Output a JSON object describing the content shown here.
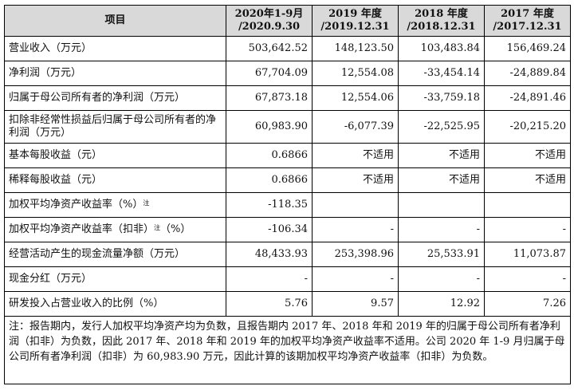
{
  "table": {
    "headers": [
      {
        "line1": "项目",
        "line2": ""
      },
      {
        "line1": "2020年1-9月",
        "line2": "/2020.9.30"
      },
      {
        "line1": "2019 年度",
        "line2": "/2019.12.31"
      },
      {
        "line1": "2018 年度",
        "line2": "/2018.12.31"
      },
      {
        "line1": "2017 年度",
        "line2": "/2017.12.31"
      }
    ],
    "rows": [
      {
        "label": "营业收入（万元）",
        "sup": "",
        "suffix": "",
        "values": [
          "503,642.52",
          "148,123.50",
          "103,483.84",
          "156,469.24"
        ]
      },
      {
        "label": "净利润（万元）",
        "sup": "",
        "suffix": "",
        "values": [
          "67,704.09",
          "12,554.08",
          "-33,454.14",
          "-24,889.84"
        ]
      },
      {
        "label": "归属于母公司所有者的净利润（万元）",
        "sup": "",
        "suffix": "",
        "values": [
          "67,873.18",
          "12,554.06",
          "-33,759.18",
          "-24,891.46"
        ]
      },
      {
        "label": "扣除非经常性损益后归属于母公司所有者的净利润（万元）",
        "sup": "",
        "suffix": "",
        "values": [
          "60,983.90",
          "-6,077.39",
          "-22,525.95",
          "-20,215.20"
        ]
      },
      {
        "label": "基本每股收益（元）",
        "sup": "",
        "suffix": "",
        "values": [
          "0.6866",
          "不适用",
          "不适用",
          "不适用"
        ]
      },
      {
        "label": "稀释每股收益（元）",
        "sup": "",
        "suffix": "",
        "values": [
          "0.6866",
          "不适用",
          "不适用",
          "不适用"
        ]
      },
      {
        "label": "加权平均净资产收益率（%）",
        "sup": "注",
        "suffix": "",
        "values": [
          "-118.35",
          "",
          "",
          ""
        ]
      },
      {
        "label": "加权平均净资产收益率（扣非）",
        "sup": "注",
        "suffix": "（%）",
        "values": [
          "-106.34",
          "-",
          "-",
          "-"
        ]
      },
      {
        "label": "经营活动产生的现金流量净额（万元）",
        "sup": "",
        "suffix": "",
        "values": [
          "48,433.93",
          "253,398.96",
          "25,533.91",
          "11,073.87"
        ]
      },
      {
        "label": "现金分红（万元）",
        "sup": "",
        "suffix": "",
        "values": [
          "-",
          "-",
          "-",
          "-"
        ]
      },
      {
        "label": "研发投入占营业收入的比例（%）",
        "sup": "",
        "suffix": "",
        "values": [
          "5.76",
          "9.57",
          "12.92",
          "7.26"
        ]
      }
    ],
    "note": "注：报告期内，发行人加权平均净资产均为负数，且报告期内 2017 年、2018 年和 2019 年的归属于母公司所有者净利润（扣非）为负数，因此 2017 年、2018 年和 2019 年的加权平均净资产收益率不适用。公司 2020 年 1-9 月归属于母公司所有者净利润（扣非）为 60,983.90 万元，因此计算的该期加权平均净资产收益率（扣非）为负数。"
  }
}
